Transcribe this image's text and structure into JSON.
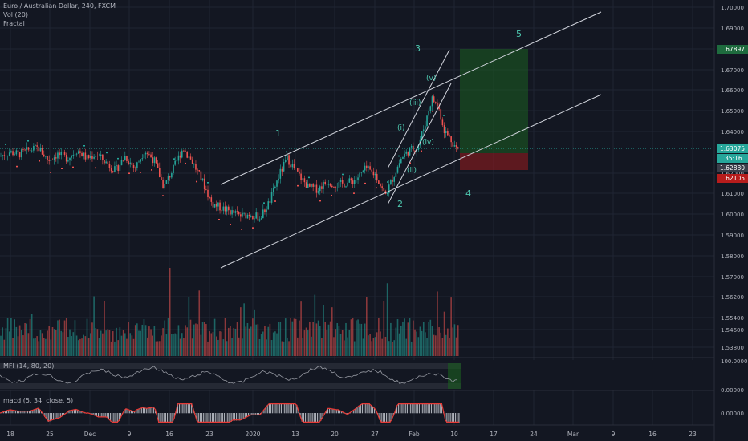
{
  "header": {
    "title": "Euro / Australian Dollar, 240, FXCM",
    "volume_indicator": "Vol (20)",
    "fractal_indicator": "Fractal"
  },
  "mfi_panel": {
    "label": "MFI (14, 80, 20)",
    "axis_label": "100.0000",
    "axis_label_low": "0.00000"
  },
  "macd_panel": {
    "label": "macd (5, 34, close, 5)",
    "axis_label": "0.00000"
  },
  "colors": {
    "background": "#131722",
    "grid": "#1f2433",
    "bull": "#26a69a",
    "bear": "#ef5350",
    "line": "#d1d4dc",
    "wave_label": "#4ec9b0",
    "current_price_bg": "#26a69a",
    "highlight_price_bg": "#1e6b3e",
    "stop_price_bg": "#b71c1c",
    "macd_line": "#e53935"
  },
  "chart_data": {
    "type": "candlestick",
    "title": "Euro / Australian Dollar, 240, FXCM",
    "ylim": [
      1.53,
      1.705
    ],
    "y_ticks": [
      "1.70000",
      "1.69000",
      "1.68000",
      "1.67000",
      "1.66000",
      "1.65000",
      "1.64000",
      "1.62000",
      "1.61000",
      "1.60000",
      "1.59000",
      "1.58000",
      "1.57000",
      "1.56200",
      "1.55400",
      "1.54600",
      "1.53800"
    ],
    "x_ticks": [
      "18",
      "25",
      "Dec",
      "9",
      "16",
      "23",
      "2020",
      "13",
      "20",
      "27",
      "Feb",
      "10",
      "17",
      "24",
      "Mar",
      "9",
      "16",
      "23"
    ],
    "price_labels": {
      "target": "1.67897",
      "current": "1.63075",
      "countdown": "35:16",
      "entry": "1.62880",
      "stop": "1.62105"
    },
    "wave_labels": [
      "1",
      "2",
      "3",
      "4",
      "5",
      "(i)",
      "(ii)",
      "(iii)",
      "(iv)",
      "(v)"
    ],
    "series_path": [
      [
        0,
        1.628
      ],
      [
        12,
        1.63
      ],
      [
        24,
        1.629
      ],
      [
        36,
        1.631
      ],
      [
        48,
        1.632
      ],
      [
        60,
        1.626
      ],
      [
        72,
        1.629
      ],
      [
        84,
        1.627
      ],
      [
        96,
        1.631
      ],
      [
        108,
        1.627
      ],
      [
        120,
        1.629
      ],
      [
        132,
        1.625
      ],
      [
        144,
        1.621
      ],
      [
        156,
        1.628
      ],
      [
        168,
        1.622
      ],
      [
        180,
        1.631
      ],
      [
        192,
        1.626
      ],
      [
        204,
        1.613
      ],
      [
        216,
        1.622
      ],
      [
        228,
        1.632
      ],
      [
        240,
        1.625
      ],
      [
        252,
        1.616
      ],
      [
        264,
        1.605
      ],
      [
        276,
        1.603
      ],
      [
        288,
        1.601
      ],
      [
        300,
        1.599
      ],
      [
        312,
        1.6
      ],
      [
        324,
        1.598
      ],
      [
        336,
        1.606
      ],
      [
        348,
        1.619
      ],
      [
        358,
        1.627
      ],
      [
        370,
        1.62
      ],
      [
        384,
        1.613
      ],
      [
        396,
        1.612
      ],
      [
        408,
        1.616
      ],
      [
        420,
        1.614
      ],
      [
        432,
        1.615
      ],
      [
        444,
        1.617
      ],
      [
        456,
        1.622
      ],
      [
        468,
        1.619
      ],
      [
        480,
        1.609
      ],
      [
        490,
        1.618
      ],
      [
        500,
        1.627
      ],
      [
        510,
        1.631
      ],
      [
        520,
        1.632
      ],
      [
        530,
        1.644
      ],
      [
        538,
        1.656
      ],
      [
        546,
        1.652
      ],
      [
        554,
        1.64
      ],
      [
        562,
        1.636
      ],
      [
        570,
        1.631
      ]
    ]
  }
}
